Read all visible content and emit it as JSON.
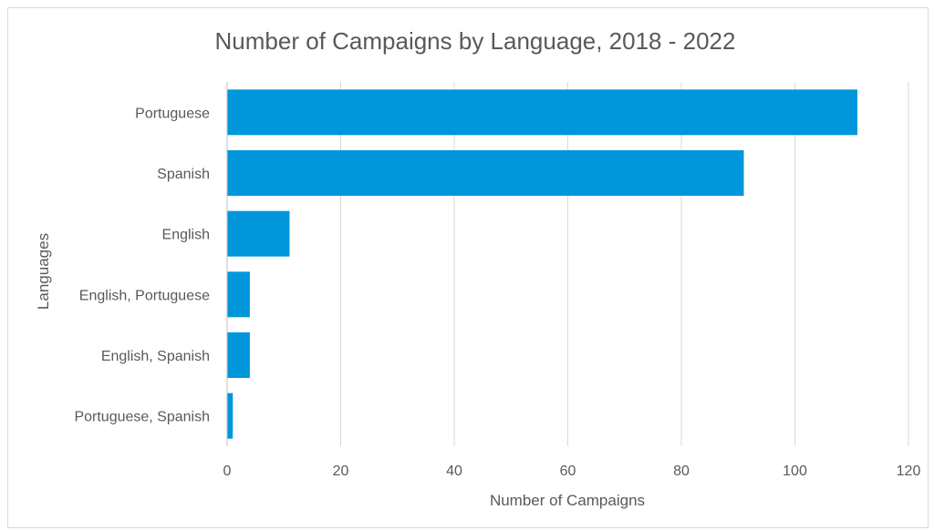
{
  "chart_data": {
    "type": "bar",
    "orientation": "horizontal",
    "title": "Number of Campaigns by Language, 2018 - 2022",
    "xlabel": "Number of Campaigns",
    "ylabel": "Languages",
    "categories": [
      "Portuguese",
      "Spanish",
      "English",
      "English, Portuguese",
      "English, Spanish",
      "Portuguese, Spanish"
    ],
    "values": [
      111,
      91,
      11,
      4,
      4,
      1
    ],
    "xlim": [
      0,
      120
    ],
    "xticks": [
      0,
      20,
      40,
      60,
      80,
      100,
      120
    ],
    "grid": "vertical",
    "legend": "none",
    "bar_color": "#0096DC",
    "gridline_color": "#d9d9d9"
  }
}
